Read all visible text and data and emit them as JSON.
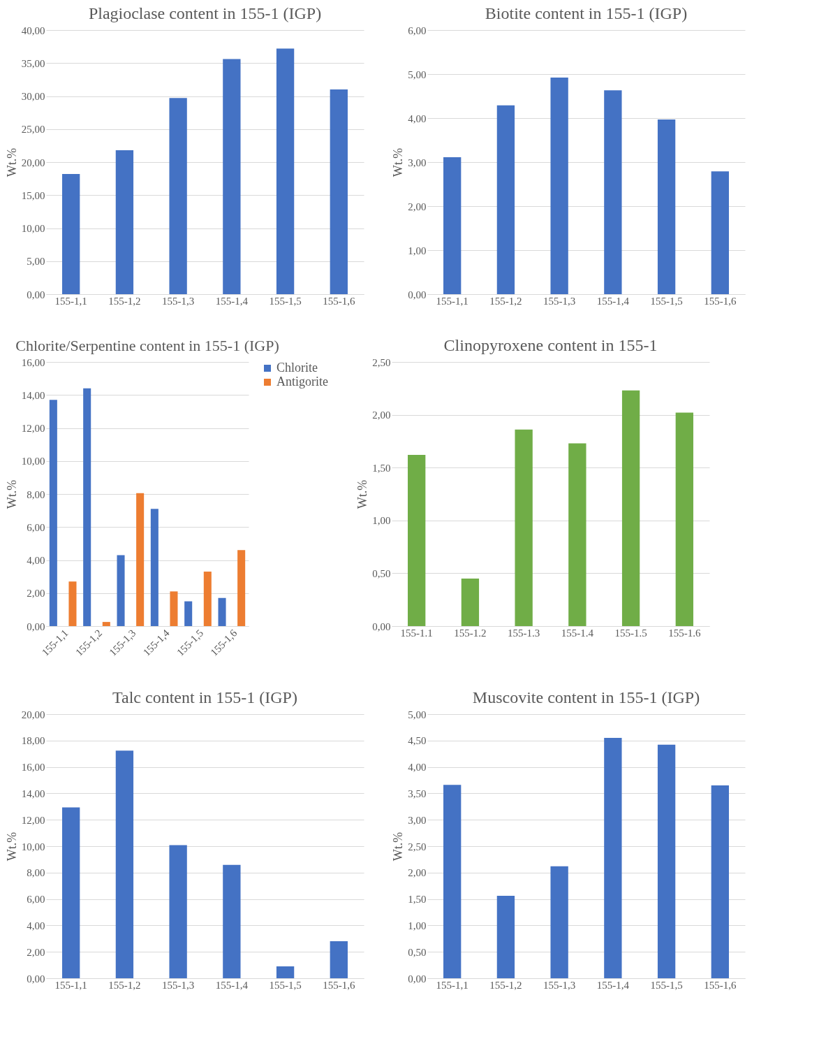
{
  "chart_data": [
    {
      "type": "bar",
      "title": "Plagioclase content in 155-1 (IGP)",
      "ylabel": "Wt.%",
      "categories": [
        "155-1,1",
        "155-1,2",
        "155-1,3",
        "155-1,4",
        "155-1,5",
        "155-1,6"
      ],
      "series": [
        {
          "color": "#4472c4",
          "values": [
            18.2,
            21.8,
            29.7,
            35.6,
            37.2,
            31.0
          ]
        }
      ],
      "ylim": [
        0,
        40
      ],
      "yticks": [
        {
          "value": 0,
          "label": "0,00"
        },
        {
          "value": 5,
          "label": "5,00"
        },
        {
          "value": 10,
          "label": "10,00"
        },
        {
          "value": 15,
          "label": "15,00"
        },
        {
          "value": 20,
          "label": "20,00"
        },
        {
          "value": 25,
          "label": "25,00"
        },
        {
          "value": 30,
          "label": "30,00"
        },
        {
          "value": 35,
          "label": "35,00"
        },
        {
          "value": 40,
          "label": "40,00"
        }
      ],
      "grid": "y"
    },
    {
      "type": "bar",
      "title": "Biotite content in 155-1 (IGP)",
      "ylabel": "Wt.%",
      "categories": [
        "155-1,1",
        "155-1,2",
        "155-1,3",
        "155-1,4",
        "155-1,5",
        "155-1,6"
      ],
      "series": [
        {
          "color": "#4472c4",
          "values": [
            3.11,
            4.29,
            4.92,
            4.63,
            3.97,
            2.79
          ]
        }
      ],
      "ylim": [
        0,
        6
      ],
      "yticks": [
        {
          "value": 0,
          "label": "0,00"
        },
        {
          "value": 1,
          "label": "1,00"
        },
        {
          "value": 2,
          "label": "2,00"
        },
        {
          "value": 3,
          "label": "3,00"
        },
        {
          "value": 4,
          "label": "4,00"
        },
        {
          "value": 5,
          "label": "5,00"
        },
        {
          "value": 6,
          "label": "6,00"
        }
      ],
      "grid": "y"
    },
    {
      "type": "bar",
      "title": "Chlorite/Serpentine content in 155-1 (IGP)",
      "ylabel": "Wt.%",
      "categories": [
        "155-1,1",
        "155-1,2",
        "155-1,3",
        "155-1,4",
        "155-1,5",
        "155-1,6"
      ],
      "series": [
        {
          "name": "Chlorite",
          "color": "#4472c4",
          "values": [
            13.7,
            14.4,
            4.3,
            7.1,
            1.5,
            1.7
          ]
        },
        {
          "name": "Antigorite",
          "color": "#ed7d31",
          "values": [
            2.7,
            0.25,
            8.05,
            2.1,
            3.3,
            4.6
          ]
        }
      ],
      "ylim": [
        0,
        16
      ],
      "yticks": [
        {
          "value": 0,
          "label": "0,00"
        },
        {
          "value": 2,
          "label": "2,00"
        },
        {
          "value": 4,
          "label": "4,00"
        },
        {
          "value": 6,
          "label": "6,00"
        },
        {
          "value": 8,
          "label": "8,00"
        },
        {
          "value": 10,
          "label": "10,00"
        },
        {
          "value": 12,
          "label": "12,00"
        },
        {
          "value": 14,
          "label": "14,00"
        },
        {
          "value": 16,
          "label": "16,00"
        }
      ],
      "grid": "y",
      "legend": "right"
    },
    {
      "type": "bar",
      "title": "Clinopyroxene content in 155-1",
      "ylabel": "Wt.%",
      "categories": [
        "155-1.1",
        "155-1.2",
        "155-1.3",
        "155-1.4",
        "155-1.5",
        "155-1.6"
      ],
      "series": [
        {
          "color": "#70ad47",
          "values": [
            1.62,
            0.45,
            1.86,
            1.73,
            2.23,
            2.02
          ]
        }
      ],
      "ylim": [
        0,
        2.5
      ],
      "yticks": [
        {
          "value": 0,
          "label": "0,00"
        },
        {
          "value": 0.5,
          "label": "0,50"
        },
        {
          "value": 1,
          "label": "1,00"
        },
        {
          "value": 1.5,
          "label": "1,50"
        },
        {
          "value": 2,
          "label": "2,00"
        },
        {
          "value": 2.5,
          "label": "2,50"
        }
      ],
      "grid": "y"
    },
    {
      "type": "bar",
      "title": "Talc content in 155-1 (IGP)",
      "ylabel": "Wt.%",
      "categories": [
        "155-1,1",
        "155-1,2",
        "155-1,3",
        "155-1,4",
        "155-1,5",
        "155-1,6"
      ],
      "series": [
        {
          "color": "#4472c4",
          "values": [
            12.94,
            17.24,
            10.08,
            8.59,
            0.9,
            2.81
          ]
        }
      ],
      "ylim": [
        0,
        20
      ],
      "yticks": [
        {
          "value": 0,
          "label": "0,00"
        },
        {
          "value": 2,
          "label": "2,00"
        },
        {
          "value": 4,
          "label": "4,00"
        },
        {
          "value": 6,
          "label": "6,00"
        },
        {
          "value": 8,
          "label": "8,00"
        },
        {
          "value": 10,
          "label": "10,00"
        },
        {
          "value": 12,
          "label": "12,00"
        },
        {
          "value": 14,
          "label": "14,00"
        },
        {
          "value": 16,
          "label": "16,00"
        },
        {
          "value": 18,
          "label": "18,00"
        },
        {
          "value": 20,
          "label": "20,00"
        }
      ],
      "grid": "y"
    },
    {
      "type": "bar",
      "title": "Muscovite content in 155-1 (IGP)",
      "ylabel": "Wt.%",
      "categories": [
        "155-1,1",
        "155-1,2",
        "155-1,3",
        "155-1,4",
        "155-1,5",
        "155-1,6"
      ],
      "series": [
        {
          "color": "#4472c4",
          "values": [
            3.66,
            1.56,
            2.12,
            4.55,
            4.42,
            3.65
          ]
        }
      ],
      "ylim": [
        0,
        5
      ],
      "yticks": [
        {
          "value": 0,
          "label": "0,00"
        },
        {
          "value": 0.5,
          "label": "0,50"
        },
        {
          "value": 1,
          "label": "1,00"
        },
        {
          "value": 1.5,
          "label": "1,50"
        },
        {
          "value": 2,
          "label": "2,00"
        },
        {
          "value": 2.5,
          "label": "2,50"
        },
        {
          "value": 3,
          "label": "3,00"
        },
        {
          "value": 3.5,
          "label": "3,50"
        },
        {
          "value": 4,
          "label": "4,00"
        },
        {
          "value": 4.5,
          "label": "4,50"
        },
        {
          "value": 5,
          "label": "5,00"
        }
      ],
      "grid": "y"
    }
  ]
}
